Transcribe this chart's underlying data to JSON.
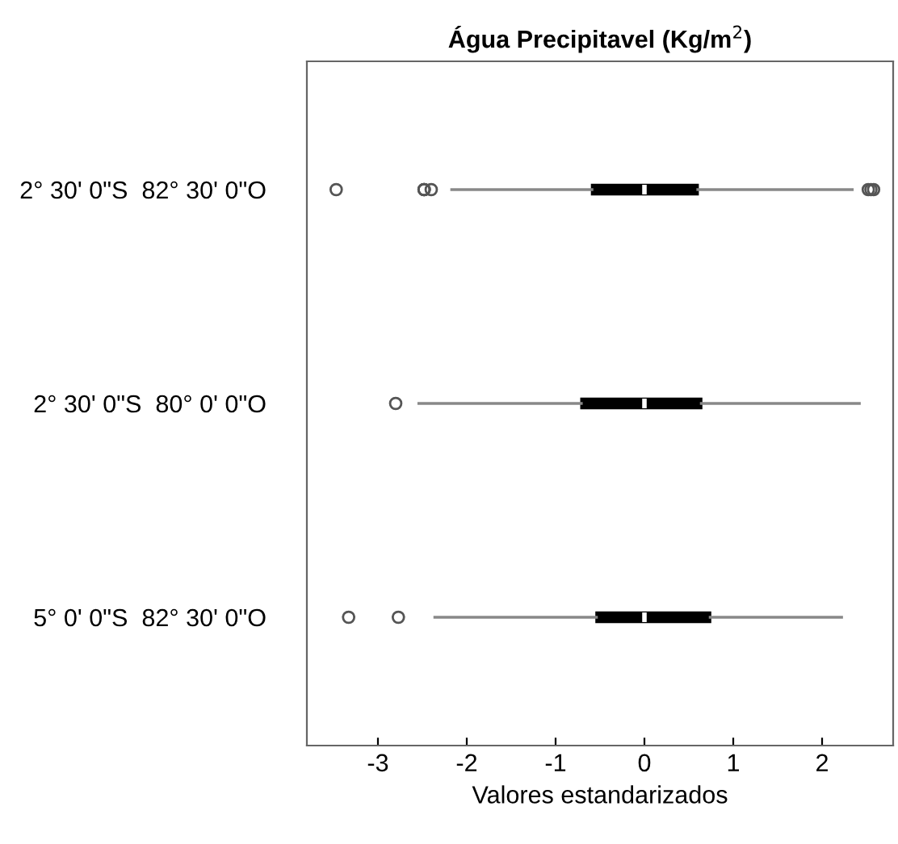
{
  "chart_data": {
    "type": "box",
    "orientation": "horizontal",
    "title": "Água Precipitavel (Kg/m$^{2}$)",
    "xlabel": "Valores estandarizados",
    "categories": [
      "2° 30' 0\"S  82° 30' 0\"O",
      "2° 30' 0\"S  80° 0' 0\"O",
      "5° 0' 0\"S  82° 30' 0\"O"
    ],
    "boxes": [
      {
        "low": -2.17,
        "q1": -0.59,
        "median": 0.0,
        "q3": 0.6,
        "high": 2.34,
        "outliers": [
          -3.47,
          -2.48,
          -2.48,
          -2.48,
          -2.4,
          2.52,
          2.58,
          2.55
        ]
      },
      {
        "low": -2.54,
        "q1": -0.71,
        "median": 0.0,
        "q3": 0.64,
        "high": 2.42,
        "outliers": [
          -2.8
        ]
      },
      {
        "low": -2.36,
        "q1": -0.54,
        "median": 0.0,
        "q3": 0.74,
        "high": 2.22,
        "outliers": [
          -3.33,
          -2.77
        ]
      }
    ],
    "xlim": [
      -3.8,
      2.8
    ],
    "xticks": [
      -3,
      -2,
      -1,
      0,
      1,
      2
    ],
    "grid": false
  }
}
